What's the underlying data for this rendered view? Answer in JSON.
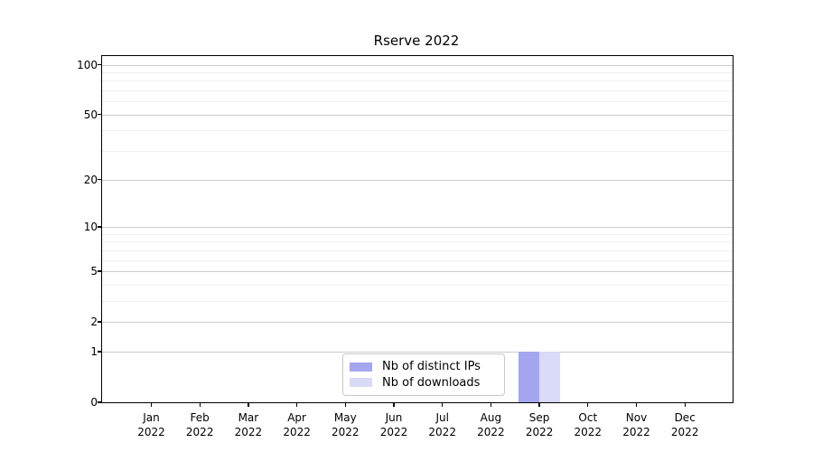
{
  "chart_data": {
    "type": "bar",
    "title": "Rserve 2022",
    "categories": [
      "Jan 2022",
      "Feb 2022",
      "Mar 2022",
      "Apr 2022",
      "May 2022",
      "Jun 2022",
      "Jul 2022",
      "Aug 2022",
      "Sep 2022",
      "Oct 2022",
      "Nov 2022",
      "Dec 2022"
    ],
    "series": [
      {
        "name": "Nb of distinct IPs",
        "color": "#a5a5f0",
        "values": [
          0,
          0,
          0,
          0,
          0,
          0,
          0,
          0,
          1,
          0,
          0,
          0
        ]
      },
      {
        "name": "Nb of downloads",
        "color": "#d9d9f8",
        "values": [
          0,
          0,
          0,
          0,
          0,
          0,
          0,
          0,
          1,
          0,
          0,
          0
        ]
      }
    ],
    "xlabel": "",
    "ylabel": "",
    "yscale": "log1p",
    "ylim": [
      0,
      100
    ],
    "y_major_ticks": [
      0,
      1,
      2,
      5,
      10,
      20,
      50,
      100
    ],
    "y_minor_gridlines": [
      3,
      4,
      6,
      7,
      8,
      9,
      30,
      40,
      60,
      70,
      80,
      90
    ],
    "grid": "horizontal",
    "legend_position": "lower center"
  },
  "colors": {
    "major_grid": "#cccccc",
    "minor_grid": "#efefef",
    "axis": "#000000",
    "legend_border": "#c9c9c9"
  }
}
